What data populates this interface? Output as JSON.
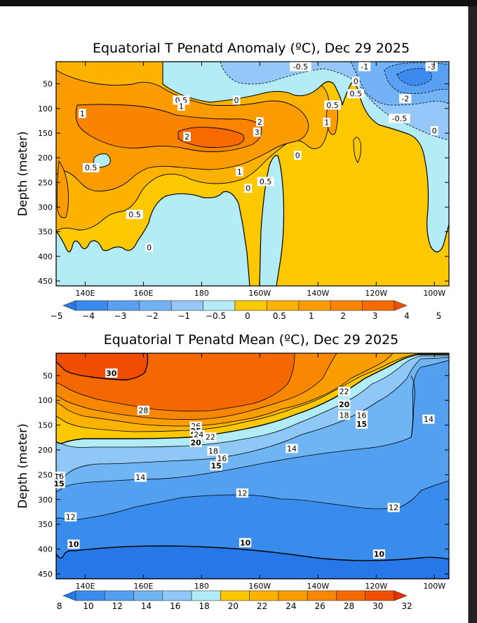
{
  "colors": {
    "blue_5": "#2a78e6",
    "blue_4": "#3b8aee",
    "blue_3": "#5aa0f2",
    "blue_2": "#74b2f6",
    "blue_1": "#95c8f8",
    "blue_05": "#b4ecf6",
    "org_0": "#fcc800",
    "org_05": "#fbb300",
    "org_1": "#fa9b00",
    "org_2": "#f98400",
    "org_3": "#f66a00",
    "org_4": "#ef5000",
    "org_5": "#e83000",
    "m_8": "#2678e8",
    "m_10": "#3a8cec",
    "m_12": "#53a0f0",
    "m_14": "#6fb4f3",
    "m_16": "#8fc8f6",
    "m_18": "#b2ecf6",
    "m_20": "#fcc800",
    "m_22": "#fbb300",
    "m_24": "#f99e00",
    "m_26": "#f78600",
    "m_28": "#f46800",
    "m_30": "#f04d00",
    "m_32": "#ea3000"
  },
  "chart_data": [
    {
      "type": "heatmap",
      "title": "Equatorial T Penatd Anomaly (ºC), Dec 29 2025",
      "xlabel": "",
      "ylabel": "Depth (meter)",
      "xlim": [
        "130E",
        "95W"
      ],
      "ylim": [
        460,
        5
      ],
      "x_ticks": [
        "140E",
        "160E",
        "180",
        "160W",
        "140W",
        "120W",
        "100W"
      ],
      "y_ticks": [
        "50",
        "100",
        "150",
        "200",
        "250",
        "300",
        "350",
        "400",
        "450"
      ],
      "colorbar": {
        "levels": [
          "−5",
          "−4",
          "−3",
          "−2",
          "−1",
          "−0.5",
          "0",
          "0.5",
          "1",
          "2",
          "3",
          "4",
          "5"
        ],
        "colors": [
          "#2a78e6",
          "#3b8aee",
          "#5aa0f2",
          "#74b2f6",
          "#95c8f8",
          "#b4ecf6",
          "#fcc800",
          "#fbb300",
          "#fa9b00",
          "#f98400",
          "#f66a00",
          "#ef5000"
        ]
      },
      "contour_labels": [
        {
          "text": "-0.5",
          "lon": "146W",
          "depth": 15
        },
        {
          "text": "-1",
          "lon": "124W",
          "depth": 15
        },
        {
          "text": "-3",
          "lon": "101W",
          "depth": 15
        },
        {
          "text": "0",
          "lon": "127W",
          "depth": 45
        },
        {
          "text": "0.5",
          "lon": "127W",
          "depth": 70
        },
        {
          "text": "-2",
          "lon": "110W",
          "depth": 80
        },
        {
          "text": "-0.5",
          "lon": "112W",
          "depth": 120
        },
        {
          "text": "0",
          "lon": "100W",
          "depth": 145
        },
        {
          "text": "0.5",
          "lon": "173E",
          "depth": 83
        },
        {
          "text": "1",
          "lon": "173E",
          "depth": 95
        },
        {
          "text": "0",
          "lon": "168W",
          "depth": 83
        },
        {
          "text": "0.5",
          "lon": "135W",
          "depth": 93
        },
        {
          "text": "1",
          "lon": "139E",
          "depth": 110
        },
        {
          "text": "2",
          "lon": "160W",
          "depth": 127
        },
        {
          "text": "3",
          "lon": "161W",
          "depth": 148
        },
        {
          "text": "1",
          "lon": "137W",
          "depth": 128
        },
        {
          "text": "2",
          "lon": "175E",
          "depth": 157
        },
        {
          "text": "0",
          "lon": "147W",
          "depth": 195
        },
        {
          "text": "0.5",
          "lon": "142E",
          "depth": 220
        },
        {
          "text": "1",
          "lon": "167W",
          "depth": 228
        },
        {
          "text": "0.5",
          "lon": "158W",
          "depth": 248
        },
        {
          "text": "0",
          "lon": "164W",
          "depth": 262
        },
        {
          "text": "0.5",
          "lon": "157E",
          "depth": 315
        },
        {
          "text": "0",
          "lon": "162E",
          "depth": 382
        }
      ]
    },
    {
      "type": "heatmap",
      "title": "Equatorial T Penatd Mean (ºC), Dec 29 2025",
      "xlabel": "",
      "ylabel": "Depth (meter)",
      "xlim": [
        "130E",
        "95W"
      ],
      "ylim": [
        460,
        5
      ],
      "x_ticks": [
        "140E",
        "160E",
        "180",
        "160W",
        "140W",
        "120W",
        "100W"
      ],
      "y_ticks": [
        "50",
        "100",
        "150",
        "200",
        "250",
        "300",
        "350",
        "400",
        "450"
      ],
      "colorbar": {
        "levels": [
          "8",
          "10",
          "12",
          "14",
          "16",
          "18",
          "20",
          "22",
          "24",
          "26",
          "28",
          "30",
          "32"
        ],
        "colors": [
          "#2678e8",
          "#3a8cec",
          "#53a0f0",
          "#6fb4f3",
          "#8fc8f6",
          "#b2ecf6",
          "#fcc800",
          "#fbb300",
          "#f99e00",
          "#f78600",
          "#f46800",
          "#f04d00",
          "#ea3000"
        ]
      },
      "contour_labels": [
        {
          "text": "30",
          "lon": "149E",
          "depth": 45,
          "bold": true
        },
        {
          "text": "28",
          "lon": "160E",
          "depth": 120
        },
        {
          "text": "22",
          "lon": "131W",
          "depth": 82
        },
        {
          "text": "20",
          "lon": "131W",
          "depth": 108,
          "bold": true
        },
        {
          "text": "18",
          "lon": "131W",
          "depth": 130
        },
        {
          "text": "16",
          "lon": "125W",
          "depth": 130
        },
        {
          "text": "15",
          "lon": "125W",
          "depth": 148,
          "bold": true
        },
        {
          "text": "14",
          "lon": "102W",
          "depth": 138
        },
        {
          "text": "26",
          "lon": "178E",
          "depth": 152
        },
        {
          "text": "25",
          "lon": "178E",
          "depth": 162,
          "bold": true
        },
        {
          "text": "24",
          "lon": "179E",
          "depth": 169
        },
        {
          "text": "22",
          "lon": "177W",
          "depth": 174
        },
        {
          "text": "20",
          "lon": "178E",
          "depth": 185,
          "bold": true
        },
        {
          "text": "18",
          "lon": "176W",
          "depth": 202
        },
        {
          "text": "16",
          "lon": "173W",
          "depth": 217
        },
        {
          "text": "15",
          "lon": "175W",
          "depth": 232,
          "bold": true
        },
        {
          "text": "14",
          "lon": "149W",
          "depth": 197
        },
        {
          "text": "16",
          "lon": "131E",
          "depth": 253
        },
        {
          "text": "15",
          "lon": "131E",
          "depth": 268,
          "bold": true
        },
        {
          "text": "14",
          "lon": "159E",
          "depth": 255
        },
        {
          "text": "12",
          "lon": "166W",
          "depth": 287
        },
        {
          "text": "12",
          "lon": "114W",
          "depth": 316
        },
        {
          "text": "12",
          "lon": "135E",
          "depth": 335
        },
        {
          "text": "10",
          "lon": "136E",
          "depth": 390,
          "bold": true
        },
        {
          "text": "10",
          "lon": "165W",
          "depth": 387,
          "bold": true
        },
        {
          "text": "10",
          "lon": "119W",
          "depth": 410,
          "bold": true
        }
      ]
    }
  ]
}
